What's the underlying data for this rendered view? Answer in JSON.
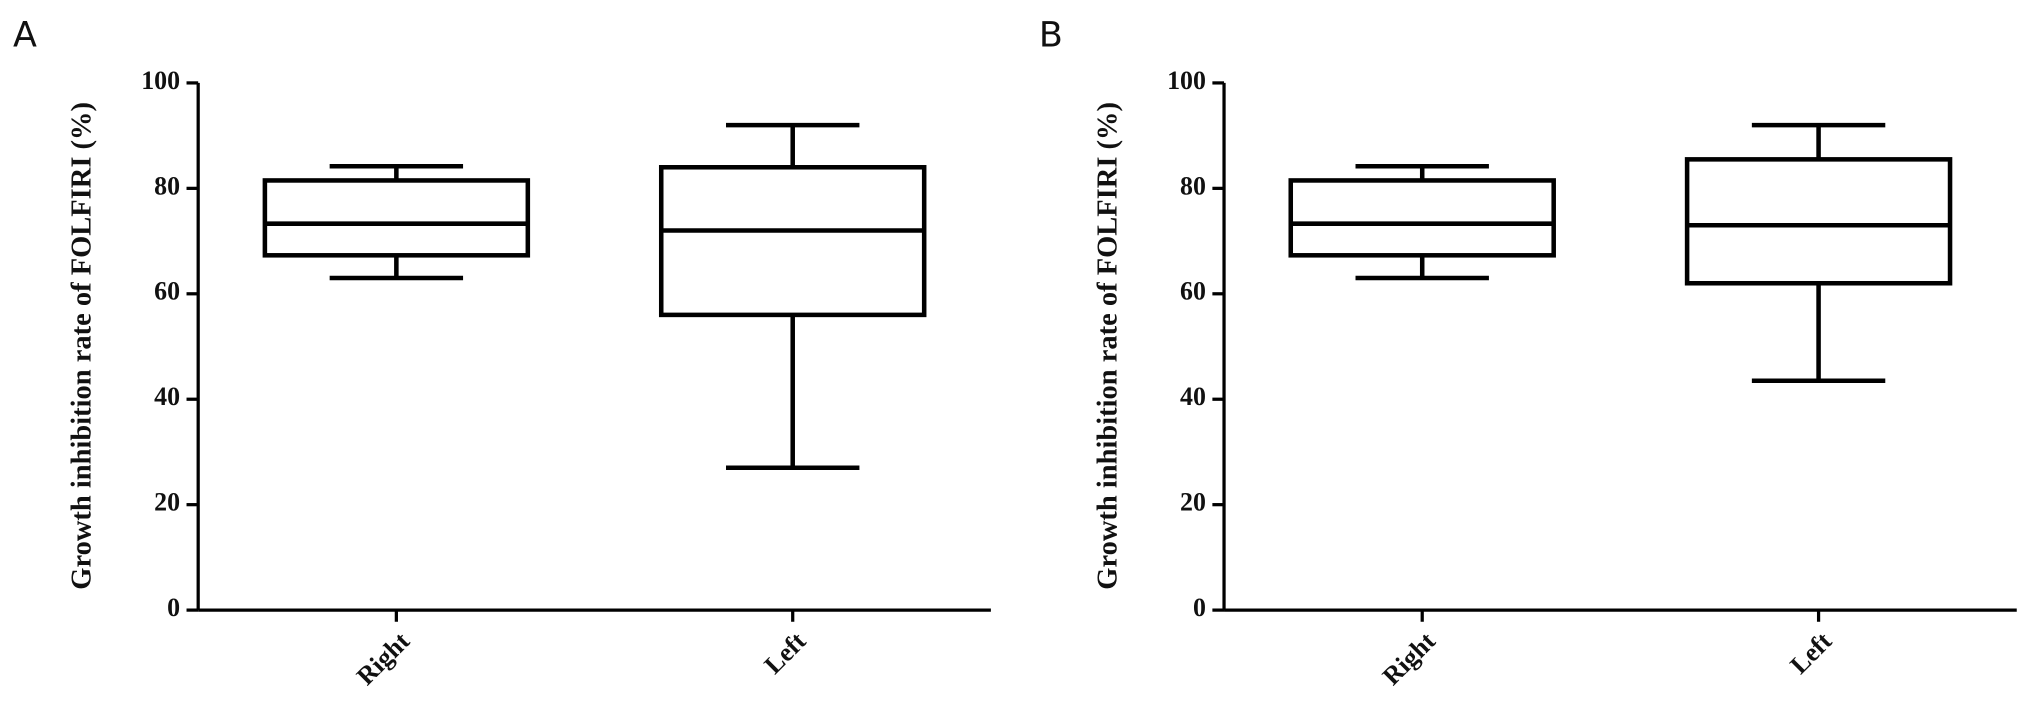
{
  "chart_data": [
    {
      "type": "box",
      "panel": "A",
      "ylabel": "Growth inhibition rate of FOLFIRI (%)",
      "categories": [
        "Right",
        "Left"
      ],
      "boxes": [
        {
          "min": 63,
          "q1": 67.3,
          "median": 73.3,
          "q3": 81.5,
          "max": 84.2
        },
        {
          "min": 27,
          "q1": 56,
          "median": 72,
          "q3": 84,
          "max": 92
        }
      ],
      "color": "#000000",
      "ylim": [
        0,
        100
      ],
      "yticks": [
        0,
        20,
        40,
        60,
        80,
        100
      ]
    },
    {
      "type": "box",
      "panel": "B",
      "ylabel": "Growth inhibition rate of FOLFIRI (%)",
      "categories": [
        "Right",
        "Left"
      ],
      "boxes": [
        {
          "min": 63,
          "q1": 67.3,
          "median": 73.3,
          "q3": 81.5,
          "max": 84.2
        },
        {
          "min": 43.5,
          "q1": 62,
          "median": 73,
          "q3": 85.5,
          "max": 92
        }
      ],
      "color": "#000000",
      "ylim": [
        0,
        100
      ],
      "yticks": [
        0,
        20,
        40,
        60,
        80,
        100
      ]
    }
  ]
}
